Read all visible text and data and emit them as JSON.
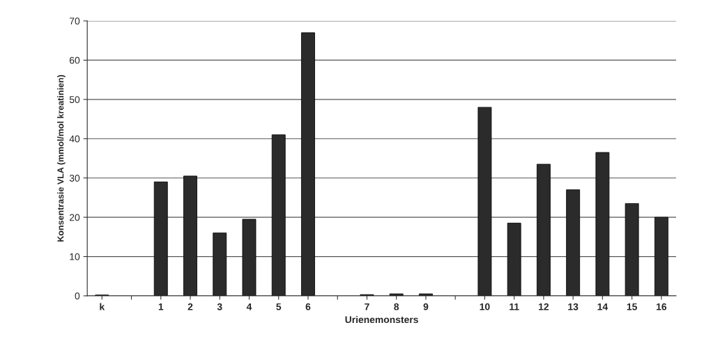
{
  "chart_data": {
    "type": "bar",
    "xlabel": "Urienemonsters",
    "ylabel": "Konsentrasie VLA (mmol/mol kreatinien)",
    "categories": [
      "k",
      null,
      "1",
      "2",
      "3",
      "4",
      "5",
      "6",
      null,
      "7",
      "8",
      "9",
      null,
      "10",
      "11",
      "12",
      "13",
      "14",
      "15",
      "16"
    ],
    "values": [
      0.2,
      null,
      29,
      30.5,
      16,
      19.5,
      41,
      67,
      null,
      0.3,
      0.5,
      0.5,
      null,
      48,
      18.5,
      33.5,
      27,
      36.5,
      23.5,
      20
    ],
    "color": "#2b2b2b",
    "ylim": [
      0,
      70
    ],
    "yticks": [
      0,
      10,
      20,
      30,
      40,
      50,
      60,
      70
    ],
    "grid": "y"
  }
}
